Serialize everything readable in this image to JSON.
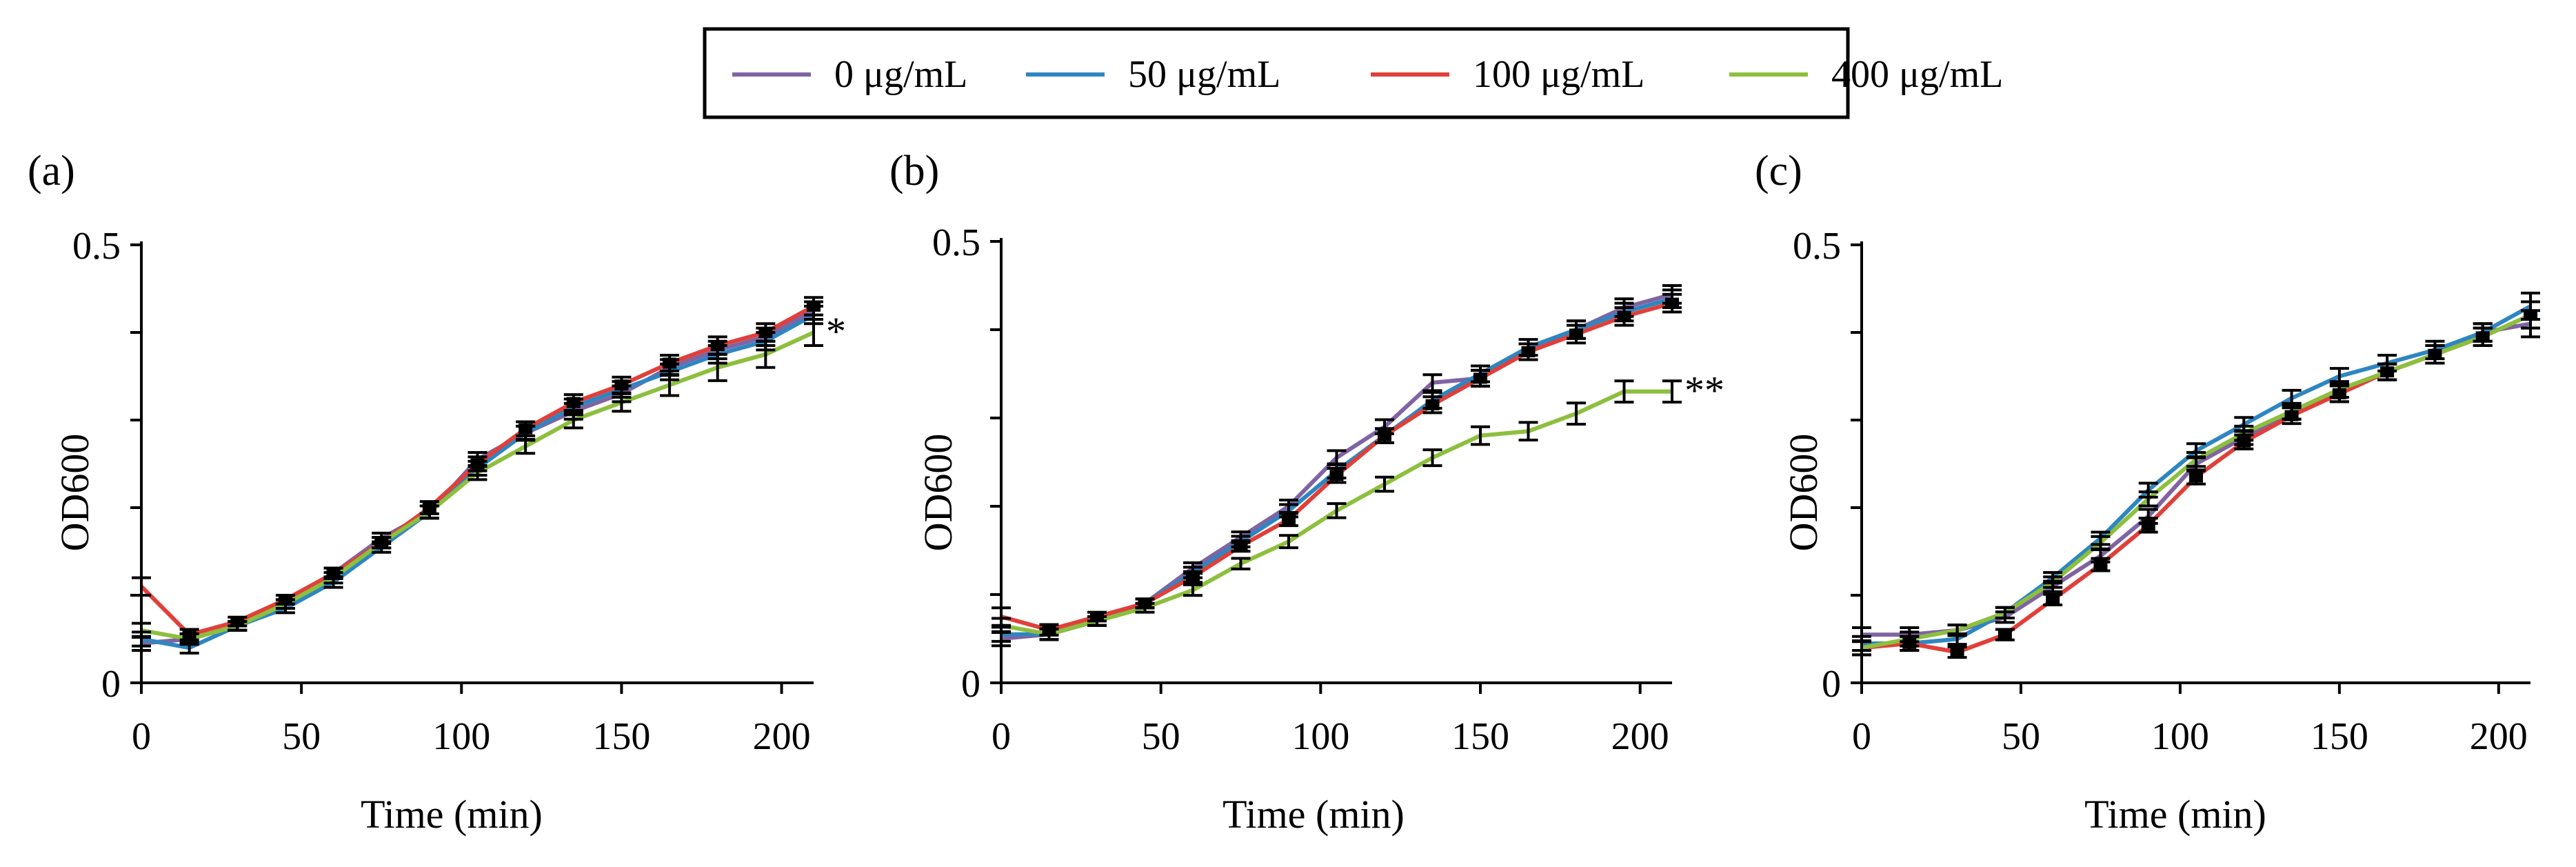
{
  "legend": {
    "entries": [
      {
        "label": "0 μg/mL",
        "color": "#8064A2"
      },
      {
        "label": "50 μg/mL",
        "color": "#2E86C1"
      },
      {
        "label": "100 μg/mL",
        "color": "#E0403A"
      },
      {
        "label": "400 μg/mL",
        "color": "#8DBF3E"
      }
    ]
  },
  "chart_data": [
    {
      "type": "line",
      "panel_label": "(a)",
      "xlabel": "Time (min)",
      "ylabel": "OD600",
      "xlim": [
        0,
        210
      ],
      "ylim": [
        0,
        0.5
      ],
      "xticks": [
        0,
        50,
        100,
        150,
        200
      ],
      "yticks": [
        0,
        0.1,
        0.2,
        0.3,
        0.4,
        0.5
      ],
      "ytick_labels": [
        "0",
        "",
        "",
        "",
        "",
        "0.5"
      ],
      "x": [
        0,
        15,
        30,
        45,
        60,
        75,
        90,
        105,
        120,
        135,
        150,
        165,
        180,
        195,
        210
      ],
      "annotation": "*",
      "series": [
        {
          "name": "0 μg/mL",
          "color": "#8064A2",
          "values": [
            0.045,
            0.05,
            0.065,
            0.09,
            0.125,
            0.165,
            0.195,
            0.255,
            0.285,
            0.31,
            0.33,
            0.36,
            0.38,
            0.395,
            0.425
          ],
          "errors": [
            0.008,
            0.006,
            0.005,
            0.005,
            0.006,
            0.006,
            0.007,
            0.008,
            0.008,
            0.009,
            0.009,
            0.009,
            0.01,
            0.01,
            0.01
          ]
        },
        {
          "name": "50 μg/mL",
          "color": "#2E86C1",
          "values": [
            0.05,
            0.04,
            0.065,
            0.085,
            0.115,
            0.155,
            0.195,
            0.245,
            0.285,
            0.315,
            0.335,
            0.355,
            0.375,
            0.39,
            0.42
          ],
          "errors": [
            0.008,
            0.006,
            0.005,
            0.005,
            0.006,
            0.006,
            0.007,
            0.008,
            0.008,
            0.009,
            0.009,
            0.009,
            0.01,
            0.01,
            0.01
          ]
        },
        {
          "name": "100 μg/mL",
          "color": "#E0403A",
          "values": [
            0.11,
            0.055,
            0.07,
            0.095,
            0.125,
            0.16,
            0.2,
            0.25,
            0.29,
            0.32,
            0.34,
            0.365,
            0.385,
            0.4,
            0.43
          ],
          "errors": [
            0.01,
            0.006,
            0.005,
            0.005,
            0.006,
            0.006,
            0.007,
            0.008,
            0.008,
            0.009,
            0.009,
            0.009,
            0.01,
            0.01,
            0.01
          ]
        },
        {
          "name": "400 μg/mL",
          "color": "#8DBF3E",
          "values": [
            0.06,
            0.05,
            0.065,
            0.09,
            0.12,
            0.16,
            0.195,
            0.24,
            0.27,
            0.3,
            0.32,
            0.34,
            0.36,
            0.375,
            0.4
          ],
          "errors": [
            0.008,
            0.006,
            0.005,
            0.005,
            0.006,
            0.006,
            0.007,
            0.008,
            0.008,
            0.009,
            0.01,
            0.012,
            0.015,
            0.015,
            0.015
          ]
        }
      ]
    },
    {
      "type": "line",
      "panel_label": "(b)",
      "xlabel": "Time (min)",
      "ylabel": "OD600",
      "xlim": [
        0,
        210
      ],
      "ylim": [
        0,
        0.5
      ],
      "xticks": [
        0,
        50,
        100,
        150,
        200
      ],
      "yticks": [
        0,
        0.1,
        0.2,
        0.3,
        0.4,
        0.5
      ],
      "ytick_labels": [
        "0",
        "",
        "",
        "",
        "",
        "0.5"
      ],
      "x": [
        0,
        15,
        30,
        45,
        60,
        75,
        90,
        105,
        120,
        135,
        150,
        165,
        180,
        195,
        210
      ],
      "annotation": "**",
      "series": [
        {
          "name": "0 μg/mL",
          "color": "#8064A2",
          "values": [
            0.05,
            0.055,
            0.07,
            0.09,
            0.13,
            0.165,
            0.2,
            0.255,
            0.29,
            0.34,
            0.345,
            0.375,
            0.4,
            0.425,
            0.44
          ],
          "errors": [
            0.008,
            0.006,
            0.005,
            0.005,
            0.006,
            0.006,
            0.007,
            0.008,
            0.008,
            0.009,
            0.009,
            0.009,
            0.01,
            0.01,
            0.01
          ]
        },
        {
          "name": "50 μg/mL",
          "color": "#2E86C1",
          "values": [
            0.055,
            0.055,
            0.07,
            0.09,
            0.125,
            0.16,
            0.195,
            0.24,
            0.28,
            0.32,
            0.35,
            0.38,
            0.4,
            0.42,
            0.435
          ],
          "errors": [
            0.008,
            0.006,
            0.005,
            0.005,
            0.006,
            0.006,
            0.007,
            0.008,
            0.008,
            0.009,
            0.009,
            0.009,
            0.01,
            0.01,
            0.01
          ]
        },
        {
          "name": "100 μg/mL",
          "color": "#E0403A",
          "values": [
            0.075,
            0.06,
            0.075,
            0.09,
            0.12,
            0.155,
            0.185,
            0.235,
            0.28,
            0.315,
            0.345,
            0.375,
            0.395,
            0.415,
            0.43
          ],
          "errors": [
            0.01,
            0.006,
            0.005,
            0.005,
            0.006,
            0.006,
            0.007,
            0.008,
            0.008,
            0.009,
            0.009,
            0.009,
            0.01,
            0.01,
            0.01
          ]
        },
        {
          "name": "400 μg/mL",
          "color": "#8DBF3E",
          "values": [
            0.065,
            0.055,
            0.07,
            0.085,
            0.105,
            0.135,
            0.16,
            0.195,
            0.225,
            0.255,
            0.28,
            0.285,
            0.305,
            0.33,
            0.33
          ],
          "errors": [
            0.008,
            0.006,
            0.005,
            0.005,
            0.006,
            0.006,
            0.007,
            0.008,
            0.008,
            0.009,
            0.01,
            0.01,
            0.012,
            0.012,
            0.012
          ]
        }
      ]
    },
    {
      "type": "line",
      "panel_label": "(c)",
      "xlabel": "Time (min)",
      "ylabel": "OD600",
      "xlim": [
        0,
        210
      ],
      "ylim": [
        0,
        0.5
      ],
      "xticks": [
        0,
        50,
        100,
        150,
        200
      ],
      "yticks": [
        0,
        0.1,
        0.2,
        0.3,
        0.4,
        0.5
      ],
      "ytick_labels": [
        "0",
        "",
        "",
        "",
        "",
        "0.5"
      ],
      "x": [
        0,
        15,
        30,
        45,
        60,
        75,
        90,
        105,
        120,
        135,
        150,
        165,
        180,
        195,
        210
      ],
      "annotation": "",
      "series": [
        {
          "name": "0 μg/mL",
          "color": "#8064A2",
          "values": [
            0.055,
            0.055,
            0.06,
            0.075,
            0.11,
            0.145,
            0.19,
            0.25,
            0.28,
            0.31,
            0.33,
            0.355,
            0.375,
            0.4,
            0.41
          ],
          "errors": [
            0.008,
            0.008,
            0.006,
            0.006,
            0.006,
            0.007,
            0.008,
            0.008,
            0.008,
            0.009,
            0.009,
            0.009,
            0.01,
            0.01,
            0.015
          ]
        },
        {
          "name": "50 μg/mL",
          "color": "#2E86C1",
          "values": [
            0.045,
            0.045,
            0.05,
            0.08,
            0.12,
            0.165,
            0.22,
            0.265,
            0.295,
            0.325,
            0.35,
            0.365,
            0.38,
            0.4,
            0.43
          ],
          "errors": [
            0.008,
            0.008,
            0.006,
            0.006,
            0.006,
            0.007,
            0.008,
            0.008,
            0.008,
            0.009,
            0.009,
            0.009,
            0.01,
            0.01,
            0.015
          ]
        },
        {
          "name": "100 μg/mL",
          "color": "#E0403A",
          "values": [
            0.04,
            0.045,
            0.035,
            0.055,
            0.095,
            0.135,
            0.18,
            0.235,
            0.275,
            0.305,
            0.33,
            0.355,
            0.375,
            0.395,
            0.42
          ],
          "errors": [
            0.008,
            0.008,
            0.006,
            0.006,
            0.006,
            0.007,
            0.008,
            0.008,
            0.008,
            0.009,
            0.009,
            0.009,
            0.01,
            0.01,
            0.015
          ]
        },
        {
          "name": "400 μg/mL",
          "color": "#8DBF3E",
          "values": [
            0.04,
            0.05,
            0.06,
            0.08,
            0.115,
            0.16,
            0.21,
            0.255,
            0.285,
            0.31,
            0.335,
            0.355,
            0.375,
            0.395,
            0.42
          ],
          "errors": [
            0.008,
            0.008,
            0.006,
            0.006,
            0.006,
            0.007,
            0.008,
            0.008,
            0.008,
            0.009,
            0.009,
            0.009,
            0.01,
            0.01,
            0.015
          ]
        }
      ]
    }
  ]
}
